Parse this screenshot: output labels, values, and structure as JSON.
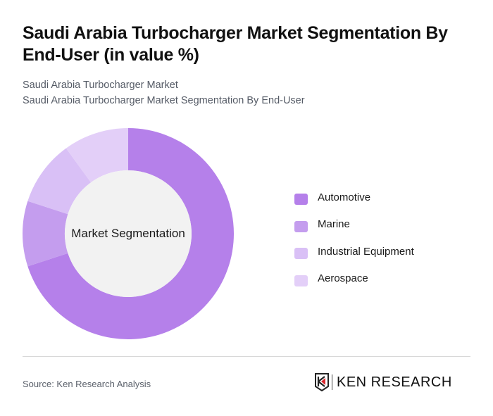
{
  "header": {
    "title": "Saudi Arabia Turbocharger Market Segmentation By End-User (in value %)",
    "subtitle_1": "Saudi Arabia Turbocharger Market",
    "subtitle_2": "Saudi Arabia Turbocharger Market Segmentation By End-User"
  },
  "chart": {
    "center_label": "Market Segmentation"
  },
  "legend": {
    "items": [
      {
        "label": "Automotive",
        "color": "#b580ea"
      },
      {
        "label": "Marine",
        "color": "#c49dee"
      },
      {
        "label": "Industrial Equipment",
        "color": "#d9c0f6"
      },
      {
        "label": "Aerospace",
        "color": "#e3cff8"
      }
    ]
  },
  "footer": {
    "source": "Source: Ken Research Analysis",
    "logo_text": "KEN RESEARCH"
  },
  "chart_data": {
    "type": "pie",
    "variant": "donut",
    "title": "Saudi Arabia Turbocharger Market Segmentation By End-User (in value %)",
    "subtitle": "Saudi Arabia Turbocharger Market Segmentation By End-User",
    "center_label": "Market Segmentation",
    "categories": [
      "Automotive",
      "Marine",
      "Industrial Equipment",
      "Aerospace"
    ],
    "values": [
      70,
      10,
      10,
      10
    ],
    "colors": [
      "#b580ea",
      "#c49dee",
      "#d9c0f6",
      "#e3cff8"
    ],
    "unit": "%",
    "legend_position": "right",
    "start_angle": "top, clockwise"
  }
}
